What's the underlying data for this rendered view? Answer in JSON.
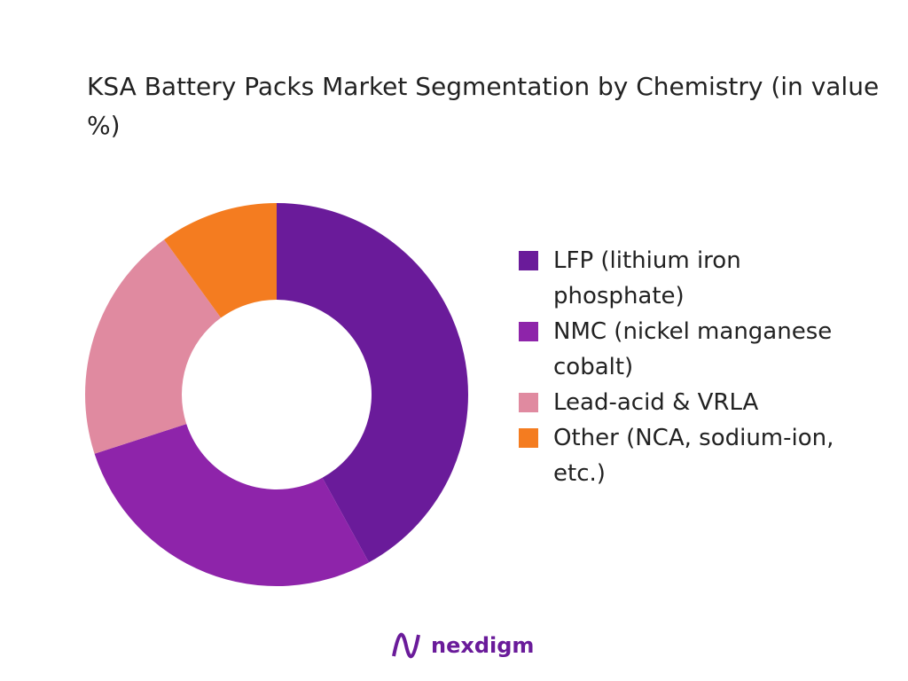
{
  "chart_data": {
    "type": "donut",
    "title": "KSA Battery Packs Market Segmentation by Chemistry (in value %)",
    "categories": [
      "LFP (lithium iron phosphate)",
      "NMC (nickel manganese cobalt)",
      "Lead-acid & VRLA",
      "Other (NCA, sodium-ion, etc.)"
    ],
    "values": [
      42,
      28,
      20,
      10
    ],
    "colors": [
      "#6a1b9a",
      "#8e24aa",
      "#e08aa0",
      "#f47c20"
    ],
    "legend": "right"
  },
  "logo": "nexdigm"
}
